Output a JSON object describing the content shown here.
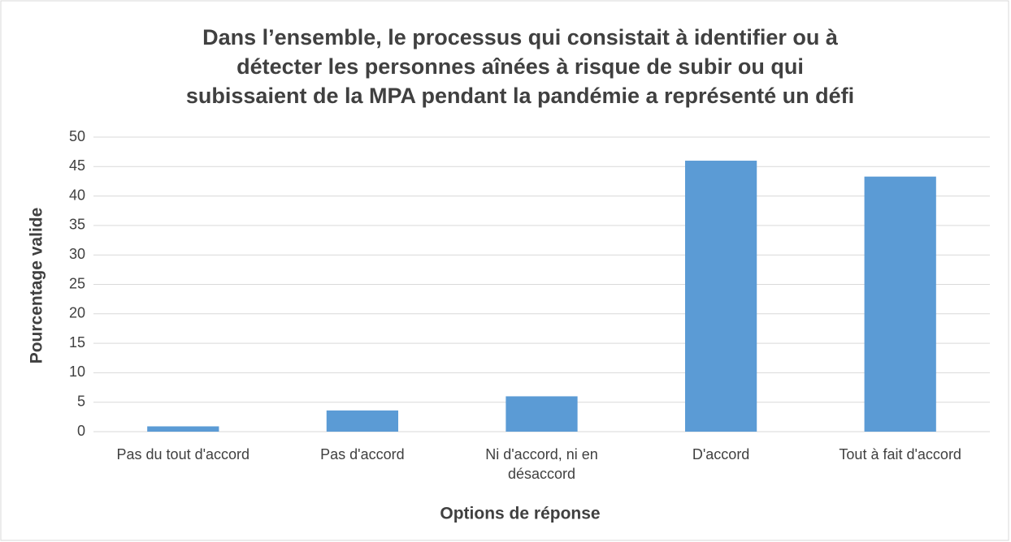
{
  "chart_data": {
    "type": "bar",
    "title": [
      "Dans l’ensemble, le processus qui consistait à identifier ou à",
      "détecter les personnes aînées à risque de subir ou qui",
      "subissaient de la MPA pendant la pandémie a représenté un défi"
    ],
    "x_label": "Options de réponse",
    "y_label": "Pourcentage valide",
    "categories": [
      "Pas du tout d'accord",
      "Pas d'accord",
      "Ni d'accord, ni en désaccord",
      "D'accord",
      "Tout à fait d'accord"
    ],
    "values": [
      0.9,
      3.6,
      6.0,
      46.0,
      43.3
    ],
    "color": "#5b9bd5",
    "ylim": [
      0,
      50
    ],
    "yticks": [
      0,
      5,
      10,
      15,
      20,
      25,
      30,
      35,
      40,
      45,
      50
    ],
    "grid": true
  }
}
